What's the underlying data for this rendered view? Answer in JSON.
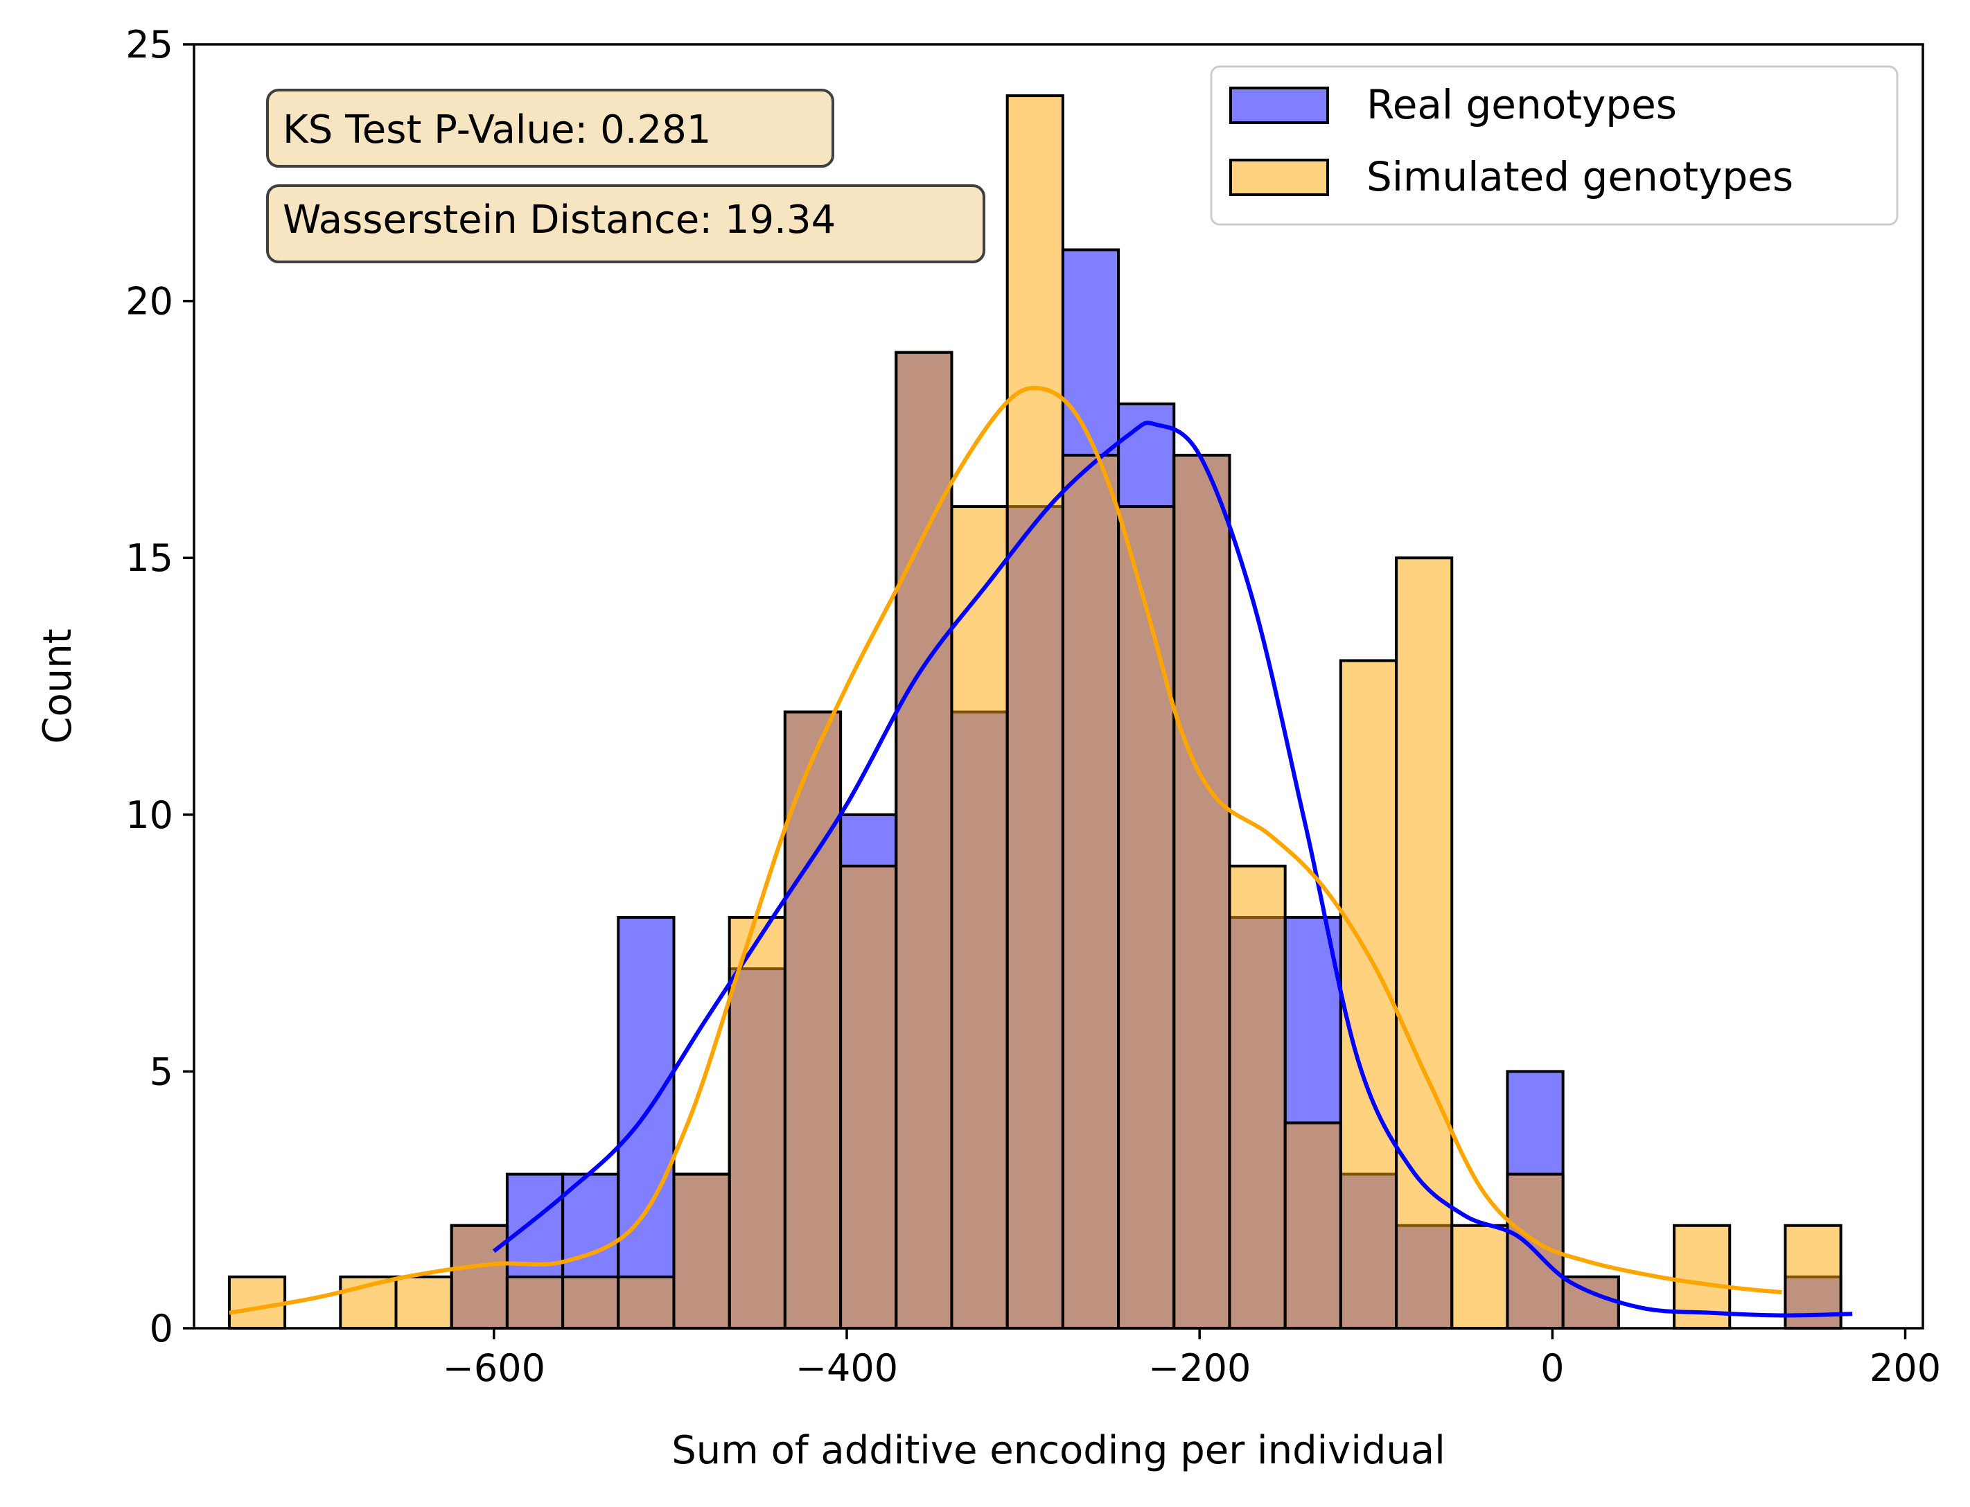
{
  "chart_data": {
    "type": "bar",
    "xlabel": "Sum of additive encoding per individual",
    "ylabel": "Count",
    "xlim": [
      -770,
      210
    ],
    "ylim": [
      0,
      25
    ],
    "x_ticks": [
      -600,
      -400,
      -200,
      0,
      200
    ],
    "x_tick_labels": [
      "−600",
      "−400",
      "−200",
      "0",
      "200"
    ],
    "y_ticks": [
      0,
      5,
      10,
      15,
      20,
      25
    ],
    "y_tick_labels": [
      "0",
      "5",
      "10",
      "15",
      "20",
      "25"
    ],
    "grid": false,
    "legend_position": "top-right",
    "bin_edges": [
      -750.0,
      -718.5,
      -687.0,
      -655.5,
      -624.0,
      -592.5,
      -561.0,
      -529.5,
      -498.0,
      -466.5,
      -435.0,
      -403.5,
      -372.0,
      -340.5,
      -309.0,
      -277.5,
      -246.0,
      -214.5,
      -183.0,
      -151.5,
      -120.0,
      -88.5,
      -57.0,
      -25.5,
      6.0,
      37.5,
      69.0,
      100.5,
      132.0,
      163.5,
      195.0
    ],
    "series": [
      {
        "name": "Real genotypes",
        "color": "#0000ff",
        "values": [
          0,
          0,
          0,
          0,
          2,
          3,
          3,
          8,
          3,
          7,
          12,
          10,
          19,
          12,
          16,
          21,
          18,
          17,
          8,
          8,
          3,
          2,
          0,
          5,
          1,
          0,
          0,
          0,
          1,
          0
        ],
        "kde_x": [
          -600,
          -560,
          -520,
          -480,
          -440,
          -400,
          -360,
          -320,
          -280,
          -240,
          -225,
          -200,
          -170,
          -140,
          -110,
          -80,
          -50,
          -20,
          10,
          50,
          90,
          130,
          170
        ],
        "kde_y": [
          1.5,
          2.6,
          3.9,
          6.0,
          8.1,
          10.2,
          12.7,
          14.5,
          16.2,
          17.4,
          17.6,
          17.0,
          14.2,
          9.8,
          5.2,
          3.1,
          2.2,
          1.8,
          0.9,
          0.4,
          0.3,
          0.25,
          0.28
        ]
      },
      {
        "name": "Simulated genotypes",
        "color": "#ffa500",
        "values": [
          1,
          0,
          1,
          1,
          2,
          1,
          1,
          1,
          3,
          8,
          12,
          9,
          19,
          16,
          24,
          17,
          16,
          17,
          9,
          4,
          13,
          15,
          2,
          3,
          1,
          0,
          2,
          0,
          2,
          0
        ],
        "kde_x": [
          -750,
          -700,
          -650,
          -600,
          -560,
          -520,
          -490,
          -460,
          -430,
          -400,
          -370,
          -340,
          -310,
          -290,
          -270,
          -250,
          -230,
          -210,
          -190,
          -160,
          -130,
          -100,
          -70,
          -40,
          -10,
          20,
          60,
          100,
          130
        ],
        "kde_y": [
          0.3,
          0.6,
          1.0,
          1.25,
          1.3,
          2.0,
          4.0,
          7.1,
          10.2,
          12.5,
          14.5,
          16.5,
          18.0,
          18.3,
          17.8,
          16.3,
          14.0,
          11.6,
          10.3,
          9.6,
          8.6,
          7.0,
          4.8,
          2.7,
          1.7,
          1.3,
          1.0,
          0.8,
          0.7
        ]
      }
    ],
    "annotations": [
      "KS Test P-Value: 0.281",
      "Wasserstein Distance: 19.34"
    ]
  }
}
